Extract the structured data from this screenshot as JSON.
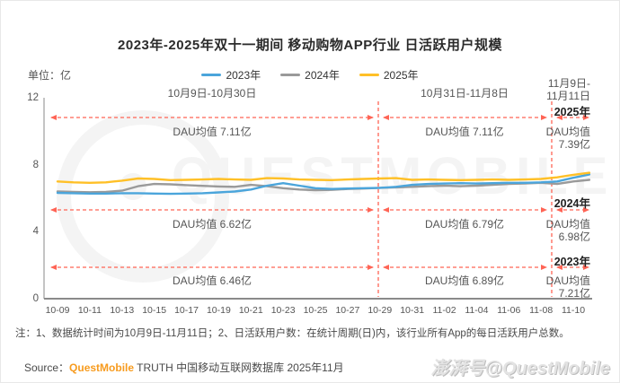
{
  "page": {
    "title": "2023年-2025年双十一期间 移动购物APP行业 日活跃用户规模",
    "unit_label": "单位：亿",
    "note": "注：1、数据统计时间为10月9日-11月11日；2、日活跃用户数：在统计周期(日)内，该行业所有App的每日活跃用户总数。",
    "source_prefix": "Source：",
    "source_brand": "QuestMobile",
    "source_rest": " TRUTH 中国移动互联网数据库 2025年11月",
    "watermark_corner": "澎湃号@QuestMobile",
    "watermark_bg": "QUESTMOBILE"
  },
  "legend": {
    "items": [
      {
        "label": "2023年",
        "color": "#4BA5DB"
      },
      {
        "label": "2024年",
        "color": "#9A9A9A"
      },
      {
        "label": "2025年",
        "color": "#FFC027"
      }
    ]
  },
  "colors": {
    "annotation_red": "#FF6455",
    "axis_gray": "#999999",
    "source_orange": "#F79B1E"
  },
  "annotations": {
    "periods": [
      {
        "range": "10月9日-10月30日"
      },
      {
        "range": "10月31日-11月8日"
      },
      {
        "line1": "11月9日-",
        "line2": "11月11日"
      }
    ],
    "rows": [
      {
        "year": "2025年",
        "seg1": "DAU均值 7.11亿",
        "seg2": "DAU均值 7.11亿",
        "seg3_label": "DAU均值",
        "seg3_value": "7.39亿"
      },
      {
        "year": "2024年",
        "seg1": "DAU均值 6.62亿",
        "seg2": "DAU均值 6.79亿",
        "seg3_label": "DAU均值",
        "seg3_value": "6.98亿"
      },
      {
        "year": "2023年",
        "seg1": "DAU均值 6.46亿",
        "seg2": "DAU均值 6.89亿",
        "seg3_label": "DAU均值",
        "seg3_value": "7.21亿"
      }
    ]
  },
  "chart_data": {
    "type": "line",
    "title": "2023年-2025年双十一期间 移动购物APP行业 日活跃用户规模",
    "ylabel": "亿",
    "ylim": [
      0,
      12
    ],
    "yticks": [
      0,
      4,
      8,
      12
    ],
    "ytick_labels": [
      "12",
      "8",
      "4",
      "0"
    ],
    "grid": false,
    "legend_position": "top-center",
    "x": [
      "10-09",
      "10-10",
      "10-11",
      "10-12",
      "10-13",
      "10-14",
      "10-15",
      "10-16",
      "10-17",
      "10-18",
      "10-19",
      "10-20",
      "10-21",
      "10-22",
      "10-23",
      "10-24",
      "10-25",
      "10-26",
      "10-27",
      "10-28",
      "10-29",
      "10-30",
      "10-31",
      "11-01",
      "11-02",
      "11-03",
      "11-04",
      "11-05",
      "11-06",
      "11-07",
      "11-08",
      "11-09",
      "11-10",
      "11-11"
    ],
    "x_tick_labels": [
      "10-09",
      "10-11",
      "10-13",
      "10-15",
      "10-17",
      "10-19",
      "10-21",
      "10-23",
      "10-25",
      "10-27",
      "10-29",
      "10-31",
      "11-02",
      "11-04",
      "11-06",
      "11-08",
      "11-10"
    ],
    "series": [
      {
        "name": "2023年",
        "color": "#4BA5DB",
        "values": [
          6.32,
          6.3,
          6.28,
          6.28,
          6.3,
          6.3,
          6.28,
          6.26,
          6.28,
          6.3,
          6.35,
          6.4,
          6.52,
          6.75,
          6.9,
          6.75,
          6.6,
          6.55,
          6.58,
          6.6,
          6.62,
          6.68,
          6.8,
          6.85,
          6.88,
          6.9,
          6.88,
          6.9,
          6.92,
          6.92,
          6.95,
          7.0,
          7.22,
          7.42
        ]
      },
      {
        "name": "2024年",
        "color": "#9A9A9A",
        "values": [
          6.4,
          6.38,
          6.36,
          6.38,
          6.45,
          6.72,
          6.85,
          6.83,
          6.78,
          6.74,
          6.7,
          6.68,
          6.8,
          6.72,
          6.6,
          6.52,
          6.48,
          6.5,
          6.55,
          6.58,
          6.62,
          6.65,
          6.68,
          6.72,
          6.75,
          6.72,
          6.75,
          6.8,
          6.85,
          6.88,
          6.92,
          6.85,
          7.0,
          7.1
        ]
      },
      {
        "name": "2025年",
        "color": "#FFC027",
        "values": [
          7.0,
          6.95,
          6.92,
          6.95,
          7.05,
          7.18,
          7.15,
          7.08,
          7.1,
          7.12,
          7.15,
          7.12,
          7.1,
          7.2,
          7.18,
          7.12,
          7.1,
          7.08,
          7.12,
          7.15,
          7.18,
          7.2,
          7.1,
          7.12,
          7.1,
          7.08,
          7.1,
          7.12,
          7.1,
          7.12,
          7.15,
          7.25,
          7.4,
          7.52
        ]
      }
    ],
    "period_dividers": [
      "10-30",
      "11-09"
    ],
    "period_averages": [
      {
        "range": "10月9日-10月30日",
        "2023": 6.46,
        "2024": 6.62,
        "2025": 7.11
      },
      {
        "range": "10月31日-11月8日",
        "2023": 6.89,
        "2024": 6.79,
        "2025": 7.11
      },
      {
        "range": "11月9日-11月11日",
        "2023": 7.21,
        "2024": 6.98,
        "2025": 7.39
      }
    ]
  }
}
